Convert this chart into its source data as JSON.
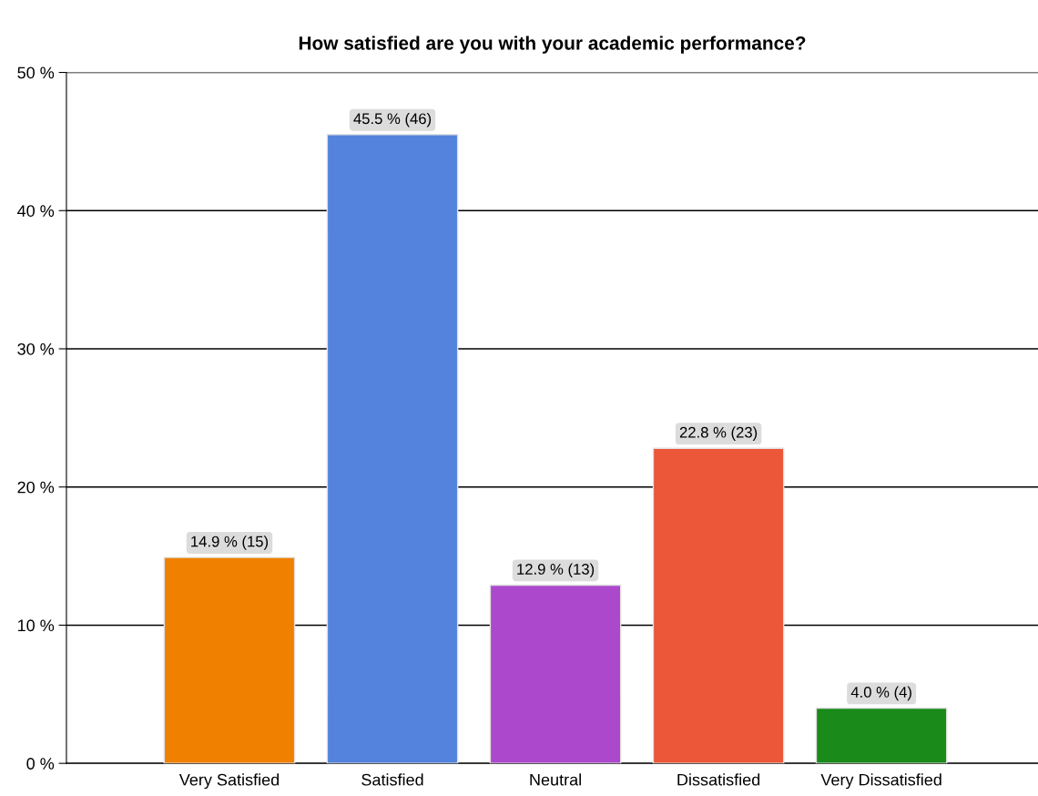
{
  "chart_data": {
    "type": "bar",
    "title": "How satisfied are you with your academic performance?",
    "categories": [
      "Very Satisfied",
      "Satisfied",
      "Neutral",
      "Dissatisfied",
      "Very Dissatisfied"
    ],
    "values": [
      14.9,
      45.5,
      12.9,
      22.8,
      4.0
    ],
    "value_labels": [
      "14.9 % (15)",
      "45.5 % (46)",
      "12.9 % (13)",
      "22.8 % (23)",
      "4.0 % (4)"
    ],
    "colors": [
      "#f08000",
      "#5383dc",
      "#ab48cb",
      "#ec5639",
      "#1a8a1a"
    ],
    "ylim": [
      0,
      50
    ],
    "yticks": [
      {
        "value": 0,
        "label": "0 %"
      },
      {
        "value": 10,
        "label": "10 %"
      },
      {
        "value": 20,
        "label": "20 %"
      },
      {
        "value": 30,
        "label": "30 %"
      },
      {
        "value": 40,
        "label": "40 %"
      },
      {
        "value": 50,
        "label": "50 %"
      }
    ],
    "grid": "y"
  }
}
